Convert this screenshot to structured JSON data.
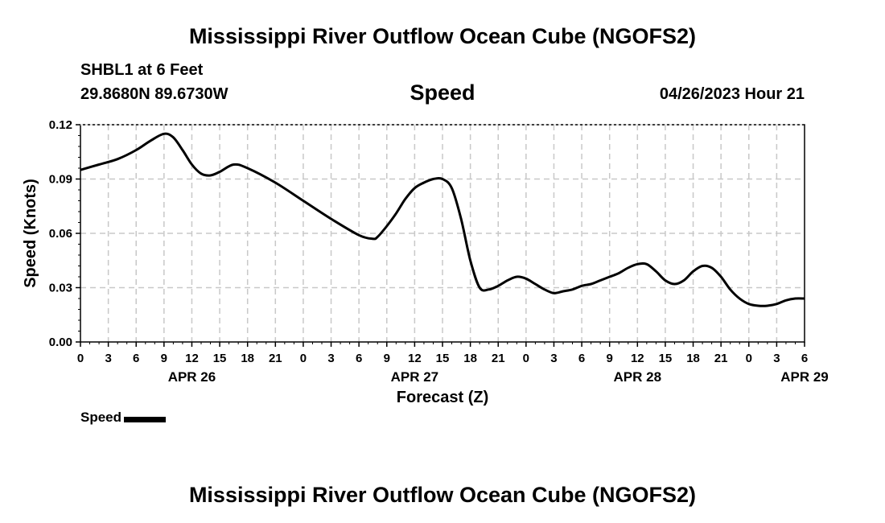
{
  "header": {
    "title": "Mississippi River Outflow Ocean Cube (NGOFS2)",
    "station": "SHBL1 at 6 Feet",
    "coordinates": "29.8680N  89.6730W",
    "parameter": "Speed",
    "datetime": "04/26/2023 Hour 21"
  },
  "footer": {
    "title": "Mississippi River Outflow Ocean Cube (NGOFS2)"
  },
  "legend": {
    "label": "Speed",
    "color": "#000000"
  },
  "chart_data": {
    "type": "line",
    "title": "Speed",
    "xlabel": "Forecast (Z)",
    "ylabel": "Speed (Knots)",
    "ylim": [
      0,
      0.12
    ],
    "yticks": [
      "0.00",
      "0.03",
      "0.06",
      "0.09",
      "0.12"
    ],
    "xlim_hours": [
      0,
      78
    ],
    "xtick_labels": [
      "0",
      "3",
      "6",
      "9",
      "12",
      "15",
      "18",
      "21",
      "0",
      "3",
      "6",
      "9",
      "12",
      "15",
      "18",
      "21",
      "0",
      "3",
      "6",
      "9",
      "12",
      "15",
      "18",
      "21",
      "0",
      "3",
      "6"
    ],
    "date_labels": [
      {
        "label": "APR 26",
        "hour": 12
      },
      {
        "label": "APR 27",
        "hour": 36
      },
      {
        "label": "APR 28",
        "hour": 60
      },
      {
        "label": "APR 29",
        "hour": 78
      }
    ],
    "grid": true,
    "series": [
      {
        "name": "Speed",
        "color": "#000000",
        "x": [
          0,
          2,
          4,
          6,
          7.5,
          9,
          10,
          11,
          12,
          13,
          14,
          15,
          16.5,
          18,
          21,
          24,
          27,
          30,
          31.5,
          32,
          33,
          34,
          35,
          36,
          37,
          38,
          39,
          40,
          41,
          42,
          43,
          44,
          45,
          46,
          47,
          48,
          49,
          50,
          51,
          52,
          53,
          54,
          55,
          56,
          57,
          58,
          59,
          60,
          61,
          62,
          63,
          64,
          65,
          66,
          67,
          68,
          69,
          70,
          71,
          72,
          73,
          74,
          75,
          76,
          77,
          78
        ],
        "values": [
          0.095,
          0.098,
          0.101,
          0.106,
          0.111,
          0.115,
          0.113,
          0.106,
          0.098,
          0.093,
          0.092,
          0.094,
          0.098,
          0.096,
          0.088,
          0.078,
          0.068,
          0.059,
          0.057,
          0.058,
          0.064,
          0.071,
          0.079,
          0.085,
          0.088,
          0.09,
          0.09,
          0.085,
          0.068,
          0.045,
          0.03,
          0.029,
          0.031,
          0.034,
          0.036,
          0.035,
          0.032,
          0.029,
          0.027,
          0.028,
          0.029,
          0.031,
          0.032,
          0.034,
          0.036,
          0.038,
          0.041,
          0.043,
          0.043,
          0.039,
          0.034,
          0.032,
          0.034,
          0.039,
          0.042,
          0.041,
          0.036,
          0.029,
          0.024,
          0.021,
          0.02,
          0.02,
          0.021,
          0.023,
          0.024,
          0.024
        ]
      }
    ]
  }
}
